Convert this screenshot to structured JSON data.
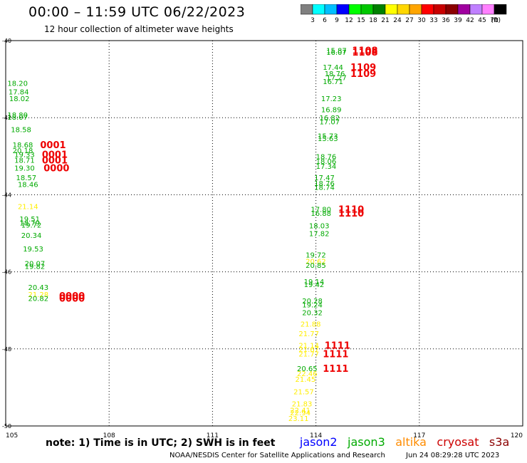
{
  "header": {
    "title": "00:00 – 11:59 UTC 06/22/2023",
    "subtitle": "12 hour collection of altimeter wave heights"
  },
  "colorbar": {
    "colors": [
      "#808080",
      "#00ffff",
      "#00bfff",
      "#0000ff",
      "#00ff00",
      "#00c800",
      "#008000",
      "#ffff00",
      "#ffd700",
      "#ffa500",
      "#ff0000",
      "#c80000",
      "#8b0000",
      "#a000a0",
      "#c080ff",
      "#ff80ff",
      "#000000"
    ],
    "labels": [
      "3",
      "6",
      "9",
      "12",
      "15",
      "18",
      "21",
      "24",
      "27",
      "30",
      "33",
      "36",
      "39",
      "42",
      "45",
      "70"
    ],
    "unit": "(ft)"
  },
  "legend": {
    "note": "note: 1) Time is in UTC; 2) SWH is in feet",
    "satellites": [
      {
        "name": "jason2",
        "color": "#0000ff"
      },
      {
        "name": "jason3",
        "color": "#00aa00"
      },
      {
        "name": "altika",
        "color": "#ff8c00"
      },
      {
        "name": "cryosat",
        "color": "#cc0000"
      },
      {
        "name": "s3a",
        "color": "#8b0000"
      }
    ]
  },
  "footer": {
    "credit": "NOAA/NESDIS Center for Satellite Applications and Research",
    "timestamp": "Jun 24 08:29:28 UTC 2023"
  },
  "chart_data": {
    "type": "scatter",
    "xlim": [
      105,
      120
    ],
    "ylim": [
      -50,
      -40
    ],
    "x_ticks": [
      "105",
      "108",
      "111",
      "114",
      "117",
      "120"
    ],
    "y_ticks": [
      "-40",
      "-42",
      "-44",
      "-46",
      "-48",
      "-50"
    ],
    "grid": true,
    "grid_style": "dotted",
    "swh_labels": [
      {
        "x": 114.3,
        "y": -40.25,
        "label": "15.87",
        "color": "#00aa00"
      },
      {
        "x": 114.3,
        "y": -40.3,
        "label": "16.07",
        "color": "#00aa00"
      },
      {
        "x": 114.2,
        "y": -40.68,
        "label": "17.44",
        "color": "#00aa00"
      },
      {
        "x": 114.25,
        "y": -40.85,
        "label": "18.76",
        "color": "#00aa00"
      },
      {
        "x": 114.3,
        "y": -40.95,
        "label": "17.27",
        "color": "#00aa00"
      },
      {
        "x": 114.2,
        "y": -41.05,
        "label": "16.71",
        "color": "#00aa00"
      },
      {
        "x": 114.15,
        "y": -41.5,
        "label": "17.23",
        "color": "#00aa00"
      },
      {
        "x": 114.15,
        "y": -41.78,
        "label": "16.89",
        "color": "#00aa00"
      },
      {
        "x": 114.1,
        "y": -42.0,
        "label": "16.82",
        "color": "#00aa00"
      },
      {
        "x": 114.1,
        "y": -42.1,
        "label": "17.07",
        "color": "#00aa00"
      },
      {
        "x": 114.05,
        "y": -42.47,
        "label": "15.73",
        "color": "#00aa00"
      },
      {
        "x": 114.05,
        "y": -42.53,
        "label": "15.63",
        "color": "#00aa00"
      },
      {
        "x": 114.0,
        "y": -43.0,
        "label": "18.76",
        "color": "#00aa00"
      },
      {
        "x": 114.0,
        "y": -43.12,
        "label": "18.06",
        "color": "#00aa00"
      },
      {
        "x": 114.0,
        "y": -43.25,
        "label": "17.34",
        "color": "#00aa00"
      },
      {
        "x": 113.95,
        "y": -43.55,
        "label": "17.47",
        "color": "#00aa00"
      },
      {
        "x": 113.95,
        "y": -43.7,
        "label": "18.76",
        "color": "#00aa00"
      },
      {
        "x": 113.95,
        "y": -43.8,
        "label": "18.74",
        "color": "#00aa00"
      },
      {
        "x": 113.85,
        "y": -44.37,
        "label": "17.80",
        "color": "#00aa00"
      },
      {
        "x": 113.85,
        "y": -44.47,
        "label": "16.88",
        "color": "#00aa00"
      },
      {
        "x": 113.8,
        "y": -44.8,
        "label": "18.03",
        "color": "#00aa00"
      },
      {
        "x": 113.8,
        "y": -45.0,
        "label": "17.82",
        "color": "#00aa00"
      },
      {
        "x": 113.7,
        "y": -45.55,
        "label": "19.72",
        "color": "#00aa00"
      },
      {
        "x": 113.7,
        "y": -45.72,
        "label": "20.62",
        "color": "#ffee00"
      },
      {
        "x": 113.7,
        "y": -45.82,
        "label": "20.85",
        "color": "#00aa00"
      },
      {
        "x": 113.65,
        "y": -46.25,
        "label": "19.14",
        "color": "#00aa00"
      },
      {
        "x": 113.65,
        "y": -46.32,
        "label": "19.42",
        "color": "#00aa00"
      },
      {
        "x": 113.6,
        "y": -46.75,
        "label": "20.28",
        "color": "#00aa00"
      },
      {
        "x": 113.6,
        "y": -46.85,
        "label": "19.24",
        "color": "#00aa00"
      },
      {
        "x": 113.6,
        "y": -47.05,
        "label": "20.32",
        "color": "#00aa00"
      },
      {
        "x": 113.55,
        "y": -47.35,
        "label": "21.88",
        "color": "#ffee00"
      },
      {
        "x": 113.5,
        "y": -47.6,
        "label": "21.77",
        "color": "#ffee00"
      },
      {
        "x": 113.5,
        "y": -47.9,
        "label": "21.14",
        "color": "#ffee00"
      },
      {
        "x": 113.5,
        "y": -48.0,
        "label": "21.67",
        "color": "#ffee00"
      },
      {
        "x": 113.5,
        "y": -48.12,
        "label": "21.77",
        "color": "#ffee00"
      },
      {
        "x": 113.45,
        "y": -48.5,
        "label": "20.65",
        "color": "#00aa00"
      },
      {
        "x": 113.45,
        "y": -48.63,
        "label": "22.46",
        "color": "#ffee00"
      },
      {
        "x": 113.4,
        "y": -48.78,
        "label": "21.45",
        "color": "#ffee00"
      },
      {
        "x": 113.35,
        "y": -49.1,
        "label": "21.57",
        "color": "#ffee00"
      },
      {
        "x": 113.3,
        "y": -49.42,
        "label": "21.83",
        "color": "#ffee00"
      },
      {
        "x": 113.25,
        "y": -49.58,
        "label": "22.41",
        "color": "#ffee00"
      },
      {
        "x": 113.25,
        "y": -49.65,
        "label": "22.94",
        "color": "#ffee00"
      },
      {
        "x": 113.2,
        "y": -49.8,
        "label": "23.11",
        "color": "#ffee00"
      },
      {
        "x": 105.05,
        "y": -41.1,
        "label": "18.20",
        "color": "#00aa00"
      },
      {
        "x": 105.08,
        "y": -41.32,
        "label": "17.84",
        "color": "#00aa00"
      },
      {
        "x": 105.1,
        "y": -41.5,
        "label": "18.02",
        "color": "#00aa00"
      },
      {
        "x": 105.05,
        "y": -41.92,
        "label": "18.80",
        "color": "#00aa00"
      },
      {
        "x": 105.05,
        "y": -41.98,
        "label": "18.07",
        "color": "#00aa00"
      },
      {
        "x": 105.15,
        "y": -42.3,
        "label": "18.58",
        "color": "#00aa00"
      },
      {
        "x": 105.2,
        "y": -42.7,
        "label": "18.68",
        "color": "#00aa00"
      },
      {
        "x": 105.2,
        "y": -42.85,
        "label": "20.18",
        "color": "#00aa00"
      },
      {
        "x": 105.25,
        "y": -42.95,
        "label": "19.33",
        "color": "#00aa00"
      },
      {
        "x": 105.25,
        "y": -43.1,
        "label": "18.71",
        "color": "#00aa00"
      },
      {
        "x": 105.25,
        "y": -43.3,
        "label": "19.30",
        "color": "#00aa00"
      },
      {
        "x": 105.3,
        "y": -43.55,
        "label": "18.57",
        "color": "#00aa00"
      },
      {
        "x": 105.35,
        "y": -43.72,
        "label": "18.46",
        "color": "#00aa00"
      },
      {
        "x": 105.35,
        "y": -44.3,
        "label": "21.14",
        "color": "#ffee00"
      },
      {
        "x": 105.4,
        "y": -44.62,
        "label": "19.51",
        "color": "#00aa00"
      },
      {
        "x": 105.4,
        "y": -44.72,
        "label": "18.79",
        "color": "#00aa00"
      },
      {
        "x": 105.45,
        "y": -44.78,
        "label": "19.72",
        "color": "#00aa00"
      },
      {
        "x": 105.45,
        "y": -45.05,
        "label": "20.34",
        "color": "#00aa00"
      },
      {
        "x": 105.5,
        "y": -45.4,
        "label": "19.53",
        "color": "#00aa00"
      },
      {
        "x": 105.55,
        "y": -45.78,
        "label": "20.07",
        "color": "#00aa00"
      },
      {
        "x": 105.55,
        "y": -45.85,
        "label": "19.82",
        "color": "#00aa00"
      },
      {
        "x": 105.65,
        "y": -46.4,
        "label": "20.43",
        "color": "#00aa00"
      },
      {
        "x": 105.65,
        "y": -46.58,
        "label": "21.28",
        "color": "#ffee00"
      },
      {
        "x": 105.65,
        "y": -46.68,
        "label": "20.82",
        "color": "#00aa00"
      }
    ],
    "pass_time_labels": [
      {
        "x": 115.05,
        "y": -40.25,
        "label": "1108",
        "color": "#ee0000"
      },
      {
        "x": 115.05,
        "y": -40.3,
        "label": "1108",
        "color": "#ee0000"
      },
      {
        "x": 115.0,
        "y": -40.68,
        "label": "1109",
        "color": "#ee0000"
      },
      {
        "x": 115.0,
        "y": -40.85,
        "label": "1109",
        "color": "#ee0000"
      },
      {
        "x": 106.0,
        "y": -42.7,
        "label": "0001",
        "color": "#ee0000"
      },
      {
        "x": 106.05,
        "y": -42.95,
        "label": "0001",
        "color": "#ee0000"
      },
      {
        "x": 106.05,
        "y": -43.1,
        "label": "0001",
        "color": "#ee0000"
      },
      {
        "x": 106.1,
        "y": -43.3,
        "label": "0000",
        "color": "#ee0000"
      },
      {
        "x": 114.65,
        "y": -44.37,
        "label": "1110",
        "color": "#ee0000"
      },
      {
        "x": 114.65,
        "y": -44.47,
        "label": "1110",
        "color": "#ee0000"
      },
      {
        "x": 106.55,
        "y": -46.62,
        "label": "0000",
        "color": "#ee0000"
      },
      {
        "x": 106.55,
        "y": -46.68,
        "label": "0000",
        "color": "#ee0000"
      },
      {
        "x": 114.25,
        "y": -47.9,
        "label": "1111",
        "color": "#ee0000"
      },
      {
        "x": 114.2,
        "y": -48.12,
        "label": "1111",
        "color": "#ee0000"
      },
      {
        "x": 114.2,
        "y": -48.5,
        "label": "1111",
        "color": "#ee0000"
      }
    ]
  }
}
